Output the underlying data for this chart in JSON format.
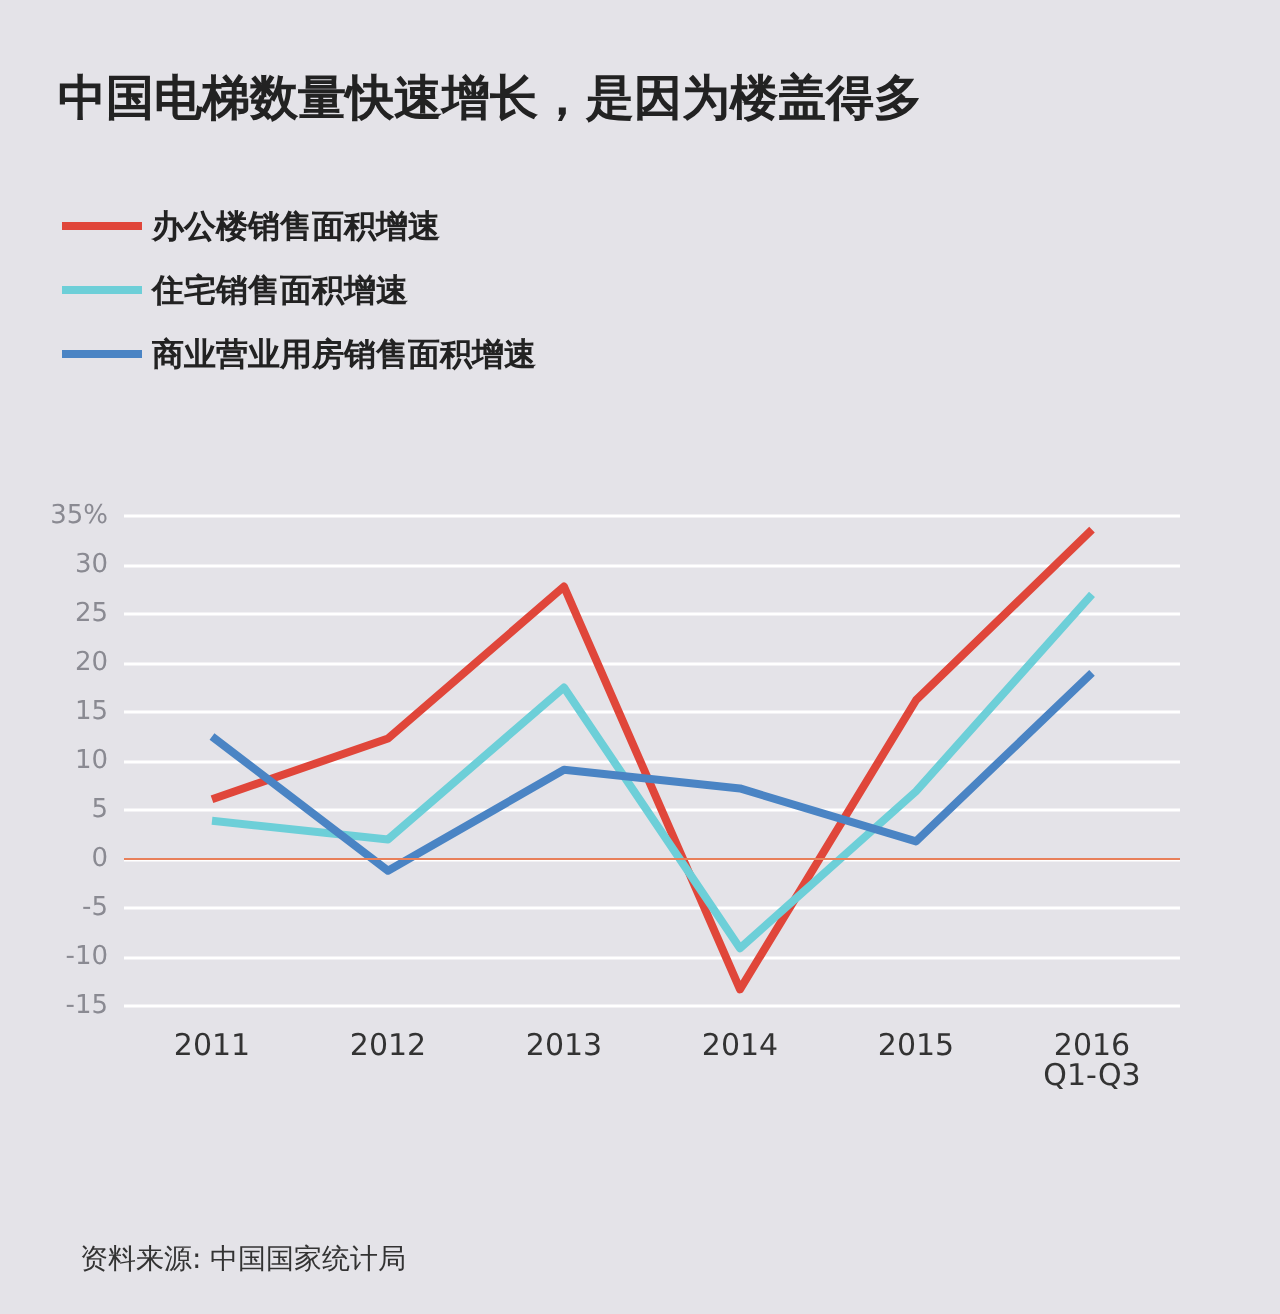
{
  "chart_data": {
    "type": "line",
    "title": "中国电梯数量快速增长，是因为楼盖得多",
    "categories": [
      "2011",
      "2012",
      "2013",
      "2014",
      "2015",
      "2016\nQ1-Q3"
    ],
    "series": [
      {
        "name": "办公楼销售面积增速",
        "color": "#e0463a",
        "values": [
          6.1,
          12.3,
          27.8,
          -13.3,
          16.2,
          33.6
        ]
      },
      {
        "name": "住宅销售面积增速",
        "color": "#6dcfd8",
        "values": [
          3.9,
          2.0,
          17.5,
          -9.1,
          6.9,
          27.0
        ]
      },
      {
        "name": "商业营业用房销售面积增速",
        "color": "#4a84c4",
        "values": [
          12.5,
          -1.2,
          9.1,
          7.2,
          1.8,
          19.0
        ]
      }
    ],
    "ylim": [
      -15,
      35
    ],
    "yticks": [
      -15,
      -10,
      -5,
      0,
      5,
      10,
      15,
      20,
      25,
      30,
      {
        "value": 35,
        "label": "35%"
      }
    ],
    "ref_lines": [
      {
        "axis": "y",
        "value": 0,
        "color": "#e8805a"
      }
    ],
    "grid": "y",
    "legend": "top left",
    "marker": "none",
    "line_style": "solid",
    "annotations": [
      "资料来源: 中国国家统计局"
    ]
  }
}
